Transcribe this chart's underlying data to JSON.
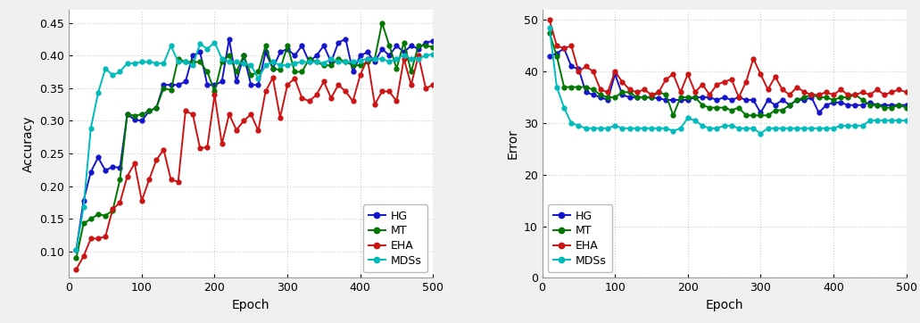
{
  "acc_epochs": [
    10,
    20,
    30,
    40,
    50,
    60,
    70,
    80,
    90,
    100,
    110,
    120,
    130,
    140,
    150,
    160,
    170,
    180,
    190,
    200,
    210,
    220,
    230,
    240,
    250,
    260,
    270,
    280,
    290,
    300,
    310,
    320,
    330,
    340,
    350,
    360,
    370,
    380,
    390,
    400,
    410,
    420,
    430,
    440,
    450,
    460,
    470,
    480,
    490,
    500
  ],
  "acc_HG": [
    0.103,
    0.178,
    0.222,
    0.244,
    0.224,
    0.23,
    0.228,
    0.31,
    0.302,
    0.3,
    0.315,
    0.32,
    0.355,
    0.355,
    0.355,
    0.36,
    0.4,
    0.405,
    0.355,
    0.355,
    0.36,
    0.425,
    0.36,
    0.4,
    0.355,
    0.355,
    0.405,
    0.38,
    0.405,
    0.41,
    0.4,
    0.415,
    0.39,
    0.4,
    0.415,
    0.39,
    0.42,
    0.425,
    0.375,
    0.4,
    0.405,
    0.39,
    0.41,
    0.4,
    0.415,
    0.405,
    0.415,
    0.41,
    0.42,
    0.422
  ],
  "acc_MT": [
    0.09,
    0.143,
    0.15,
    0.157,
    0.155,
    0.163,
    0.21,
    0.31,
    0.308,
    0.31,
    0.315,
    0.32,
    0.35,
    0.347,
    0.395,
    0.39,
    0.39,
    0.39,
    0.375,
    0.345,
    0.39,
    0.4,
    0.375,
    0.4,
    0.37,
    0.375,
    0.415,
    0.38,
    0.378,
    0.415,
    0.375,
    0.375,
    0.395,
    0.39,
    0.385,
    0.385,
    0.395,
    0.39,
    0.385,
    0.385,
    0.39,
    0.395,
    0.45,
    0.415,
    0.38,
    0.42,
    0.375,
    0.415,
    0.415,
    0.413
  ],
  "acc_EHA": [
    0.073,
    0.093,
    0.12,
    0.12,
    0.123,
    0.165,
    0.175,
    0.215,
    0.235,
    0.178,
    0.21,
    0.24,
    0.256,
    0.21,
    0.207,
    0.315,
    0.31,
    0.258,
    0.26,
    0.34,
    0.265,
    0.31,
    0.286,
    0.3,
    0.31,
    0.285,
    0.345,
    0.366,
    0.305,
    0.355,
    0.365,
    0.335,
    0.33,
    0.34,
    0.36,
    0.335,
    0.355,
    0.345,
    0.33,
    0.37,
    0.395,
    0.325,
    0.345,
    0.345,
    0.33,
    0.395,
    0.355,
    0.4,
    0.35,
    0.355
  ],
  "acc_MDSs": [
    0.103,
    0.168,
    0.289,
    0.343,
    0.38,
    0.37,
    0.375,
    0.388,
    0.388,
    0.39,
    0.39,
    0.388,
    0.388,
    0.415,
    0.39,
    0.39,
    0.385,
    0.418,
    0.41,
    0.42,
    0.395,
    0.39,
    0.39,
    0.388,
    0.385,
    0.365,
    0.385,
    0.39,
    0.385,
    0.385,
    0.388,
    0.39,
    0.39,
    0.39,
    0.388,
    0.395,
    0.39,
    0.39,
    0.39,
    0.392,
    0.395,
    0.395,
    0.395,
    0.39,
    0.395,
    0.4,
    0.395,
    0.395,
    0.4,
    0.402
  ],
  "err_epochs": [
    10,
    20,
    30,
    40,
    50,
    60,
    70,
    80,
    90,
    100,
    110,
    120,
    130,
    140,
    150,
    160,
    170,
    180,
    190,
    200,
    210,
    220,
    230,
    240,
    250,
    260,
    270,
    280,
    290,
    300,
    310,
    320,
    330,
    340,
    350,
    360,
    370,
    380,
    390,
    400,
    410,
    420,
    430,
    440,
    450,
    460,
    470,
    480,
    490,
    500
  ],
  "err_HG": [
    43.0,
    43.5,
    44.5,
    41.0,
    40.5,
    36.0,
    35.5,
    35.0,
    34.5,
    39.5,
    35.5,
    35.0,
    35.0,
    35.0,
    35.0,
    34.8,
    34.5,
    34.5,
    34.5,
    34.5,
    35.0,
    35.0,
    35.0,
    34.5,
    35.0,
    34.5,
    35.0,
    34.5,
    34.5,
    32.0,
    34.5,
    33.5,
    34.5,
    33.5,
    34.5,
    34.5,
    35.0,
    32.0,
    33.5,
    34.0,
    34.0,
    33.5,
    33.5,
    33.5,
    34.0,
    33.5,
    33.5,
    33.5,
    33.5,
    33.5
  ],
  "err_MT": [
    47.5,
    43.0,
    37.0,
    37.0,
    37.0,
    37.0,
    36.5,
    35.5,
    35.0,
    35.0,
    36.0,
    36.0,
    35.0,
    35.0,
    35.0,
    36.0,
    35.5,
    31.5,
    35.0,
    35.0,
    35.0,
    33.5,
    33.0,
    33.0,
    33.0,
    32.5,
    33.0,
    31.5,
    31.5,
    31.5,
    31.5,
    32.5,
    32.5,
    33.5,
    34.5,
    35.0,
    35.5,
    35.0,
    35.0,
    34.5,
    35.0,
    35.0,
    35.5,
    34.5,
    33.5,
    33.5,
    33.0,
    33.0,
    33.5,
    33.0
  ],
  "err_EHA": [
    50.0,
    45.0,
    44.5,
    45.0,
    40.0,
    41.0,
    40.0,
    36.5,
    36.0,
    40.0,
    38.0,
    36.5,
    36.0,
    36.5,
    35.5,
    36.0,
    38.5,
    39.5,
    36.0,
    39.5,
    36.0,
    37.5,
    35.5,
    37.5,
    38.0,
    38.5,
    35.0,
    38.0,
    42.5,
    39.5,
    36.5,
    39.0,
    36.5,
    35.5,
    37.0,
    36.0,
    35.5,
    35.5,
    36.0,
    35.5,
    36.5,
    35.5,
    35.5,
    36.0,
    35.5,
    36.5,
    35.5,
    36.0,
    36.5,
    36.0
  ],
  "err_MDSs": [
    48.5,
    37.0,
    33.0,
    30.0,
    29.5,
    29.0,
    29.0,
    29.0,
    29.0,
    29.5,
    29.0,
    29.0,
    29.0,
    29.0,
    29.0,
    29.0,
    29.0,
    28.5,
    29.0,
    31.0,
    30.5,
    29.5,
    29.0,
    29.0,
    29.5,
    29.5,
    29.0,
    29.0,
    29.0,
    28.0,
    29.0,
    29.0,
    29.0,
    29.0,
    29.0,
    29.0,
    29.0,
    29.0,
    29.0,
    29.0,
    29.5,
    29.5,
    29.5,
    29.5,
    30.5,
    30.5,
    30.5,
    30.5,
    30.5,
    30.5
  ],
  "colors": {
    "HG": "#1414cc",
    "MT": "#007700",
    "EHA": "#cc1414",
    "MDSs": "#00bbbb"
  },
  "acc_ylim": [
    0.06,
    0.47
  ],
  "err_ylim": [
    0,
    52
  ],
  "acc_yticks": [
    0.1,
    0.15,
    0.2,
    0.25,
    0.3,
    0.35,
    0.4,
    0.45
  ],
  "err_yticks": [
    0,
    10,
    20,
    30,
    40,
    50
  ],
  "xlim": [
    0,
    500
  ],
  "xticks": [
    0,
    100,
    200,
    300,
    400,
    500
  ],
  "xlabel": "Epoch",
  "acc_ylabel": "Accuracy",
  "err_ylabel": "Error",
  "plot_bg": "#ffffff",
  "fig_bg": "#f0f0f0",
  "grid_color": "#cccccc",
  "marker": "o",
  "markersize": 3.5,
  "linewidth": 1.4
}
